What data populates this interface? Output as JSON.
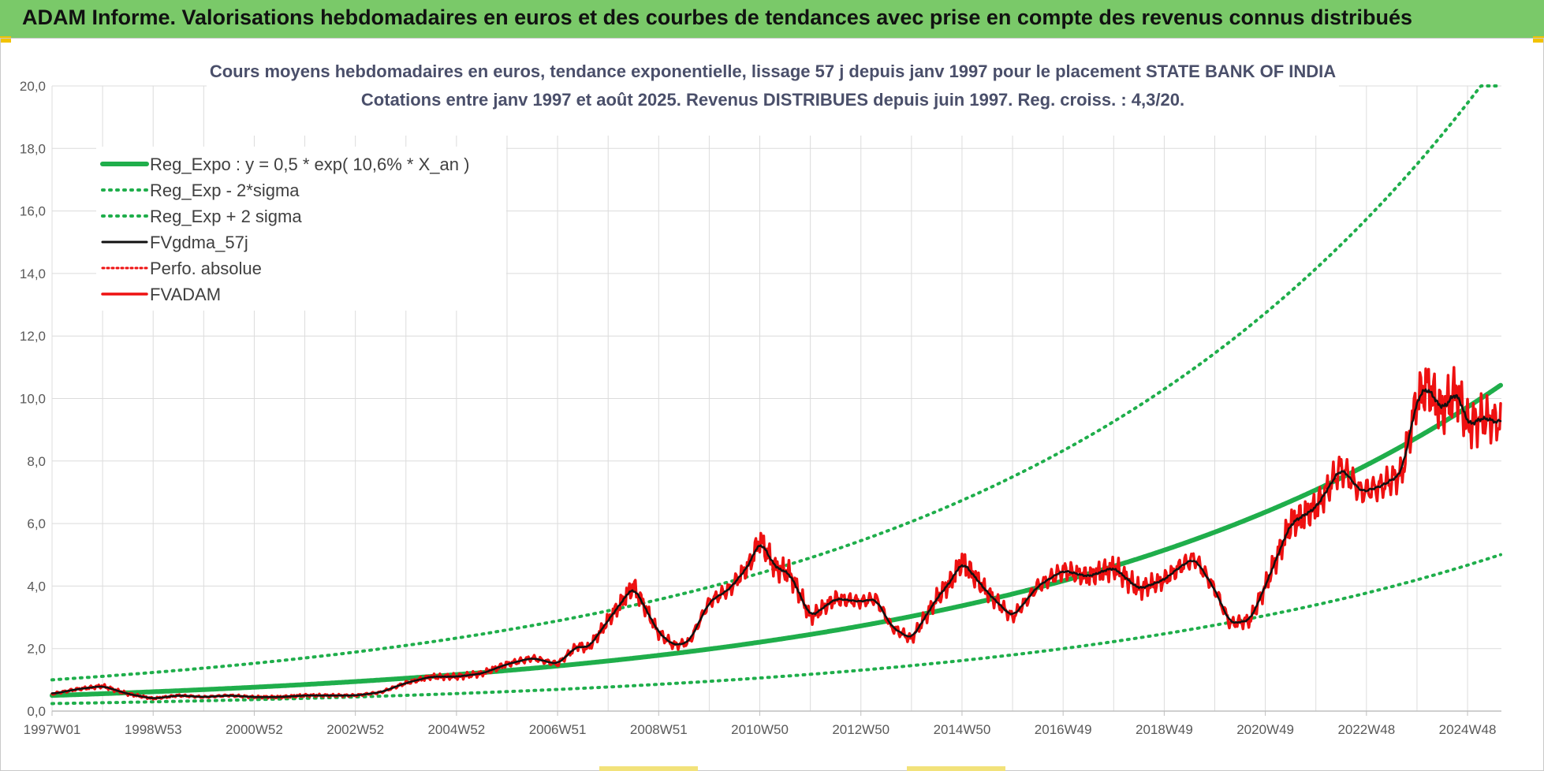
{
  "header": {
    "title": "ADAM Informe. Valorisations hebdomadaires en euros et des courbes de tendances avec prise en compte des revenus connus distribués"
  },
  "chart_data": {
    "type": "line",
    "title_line1": "Cours moyens hebdomadaires en euros, tendance exponentielle, lissage 57 j depuis janv 1997  pour le placement STATE BANK OF INDIA",
    "title_line2": "Cotations entre janv 1997 et août 2025.  Revenus DISTRIBUES depuis juin 1997.  Reg. croiss. : 4,3/20.",
    "xlabel": "",
    "ylabel": "",
    "ylim": [
      0,
      20
    ],
    "xlim": [
      1997.0,
      2025.67
    ],
    "grid": true,
    "legend_position": "top-left",
    "y_ticks": [
      "0,0",
      "2,0",
      "4,0",
      "6,0",
      "8,0",
      "10,0",
      "12,0",
      "14,0",
      "16,0",
      "18,0",
      "20,0"
    ],
    "x_tick_labels": [
      {
        "label": "1997W01",
        "year": 1997.0
      },
      {
        "label": "1998W53",
        "year": 1999.0
      },
      {
        "label": "2000W52",
        "year": 2001.0
      },
      {
        "label": "2002W52",
        "year": 2003.0
      },
      {
        "label": "2004W52",
        "year": 2005.0
      },
      {
        "label": "2006W51",
        "year": 2007.0
      },
      {
        "label": "2008W51",
        "year": 2009.0
      },
      {
        "label": "2010W50",
        "year": 2011.0
      },
      {
        "label": "2012W50",
        "year": 2013.0
      },
      {
        "label": "2014W50",
        "year": 2015.0
      },
      {
        "label": "2016W49",
        "year": 2017.0
      },
      {
        "label": "2018W49",
        "year": 2019.0
      },
      {
        "label": "2020W49",
        "year": 2021.0
      },
      {
        "label": "2022W48",
        "year": 2023.0
      },
      {
        "label": "2024W48",
        "year": 2025.0
      }
    ],
    "trend": {
      "a": 0.5,
      "rate": 0.106,
      "cap": 20.0,
      "lower_factor": 0.48,
      "upper_factor": 2.0
    },
    "series": [
      {
        "name": "Reg_Expo : y = 0,5 * exp( 10,6% *  X_an )",
        "kind": "reg",
        "color": "#1fae4b",
        "dash": "",
        "width": 6
      },
      {
        "name": "Reg_Exp - 2*sigma",
        "kind": "lower",
        "color": "#1fae4b",
        "dash": "2,7",
        "width": 4
      },
      {
        "name": "Reg_Exp + 2 sigma",
        "kind": "upper",
        "color": "#1fae4b",
        "dash": "2,7",
        "width": 4
      },
      {
        "name": "FVgdma_57j",
        "kind": "smooth",
        "color": "#111111",
        "dash": "",
        "width": 2.5
      },
      {
        "name": "Perfo. absolue",
        "kind": "none",
        "color": "#ee1111",
        "dash": "2,4",
        "width": 2.5
      },
      {
        "name": "FVADAM",
        "kind": "price",
        "color": "#ee1111",
        "dash": "",
        "width": 3.5
      }
    ],
    "price_keypoints": {
      "x": [
        1997.0,
        1997.5,
        1998.0,
        1998.5,
        1999.0,
        1999.5,
        2000.0,
        2000.5,
        2001.0,
        2001.5,
        2002.0,
        2002.5,
        2003.0,
        2003.5,
        2004.0,
        2004.5,
        2005.0,
        2005.5,
        2006.0,
        2006.5,
        2007.0,
        2007.4,
        2007.6,
        2008.0,
        2008.5,
        2009.0,
        2009.3,
        2009.6,
        2010.0,
        2010.4,
        2010.8,
        2011.0,
        2011.3,
        2011.6,
        2012.0,
        2012.5,
        2013.0,
        2013.3,
        2013.6,
        2014.0,
        2014.5,
        2014.8,
        2015.0,
        2015.5,
        2016.0,
        2016.5,
        2017.0,
        2017.5,
        2018.0,
        2018.5,
        2019.0,
        2019.3,
        2019.6,
        2020.0,
        2020.3,
        2020.7,
        2021.0,
        2021.5,
        2022.0,
        2022.5,
        2022.9,
        2023.3,
        2023.7,
        2024.0,
        2024.2,
        2024.5,
        2024.8,
        2025.0,
        2025.3,
        2025.67
      ],
      "y": [
        0.55,
        0.7,
        0.8,
        0.55,
        0.4,
        0.5,
        0.45,
        0.5,
        0.45,
        0.45,
        0.5,
        0.5,
        0.5,
        0.6,
        0.9,
        1.1,
        1.1,
        1.2,
        1.5,
        1.7,
        1.5,
        2.1,
        2.0,
        2.9,
        4.0,
        2.5,
        2.1,
        2.2,
        3.5,
        3.9,
        4.7,
        5.5,
        4.6,
        4.4,
        3.0,
        3.6,
        3.5,
        3.6,
        2.7,
        2.3,
        3.6,
        4.2,
        4.8,
        3.8,
        3.0,
        4.0,
        4.5,
        4.3,
        4.6,
        3.9,
        4.2,
        4.6,
        4.9,
        3.9,
        2.8,
        2.9,
        4.0,
        6.0,
        6.5,
        7.8,
        7.0,
        7.2,
        7.6,
        10.0,
        10.4,
        9.6,
        10.3,
        9.1,
        9.4,
        9.2
      ]
    }
  }
}
